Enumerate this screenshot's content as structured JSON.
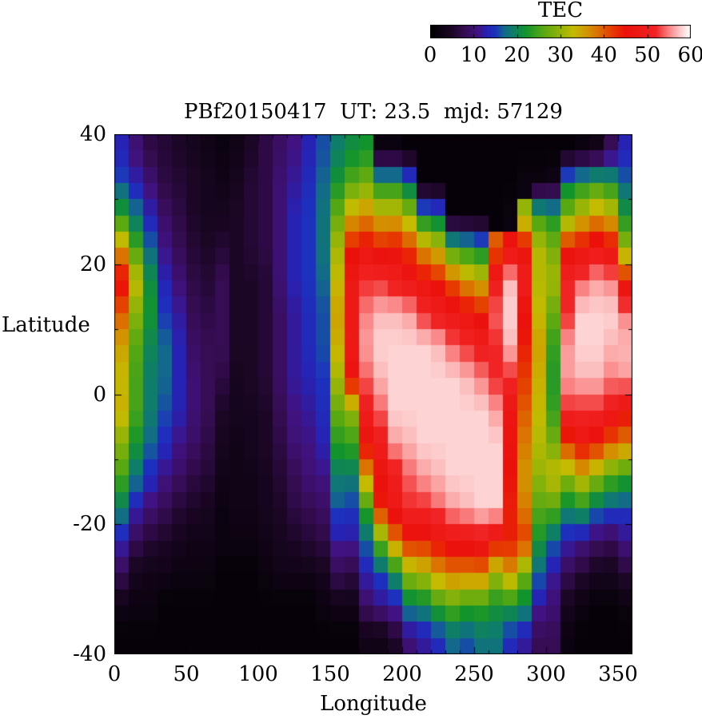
{
  "title": {
    "text": "PBf20150417  UT: 23.5  mjd: 57129"
  },
  "colorbar": {
    "label": "TEC",
    "min": 0,
    "max": 60,
    "tick_values": [
      0,
      10,
      20,
      30,
      40,
      50,
      60
    ],
    "tick_labels": [
      "0",
      "10",
      "20",
      "30",
      "40",
      "50",
      "60"
    ],
    "palette_stops": [
      [
        0,
        "#000000"
      ],
      [
        5,
        "#1c0626"
      ],
      [
        8,
        "#360c54"
      ],
      [
        11,
        "#401282"
      ],
      [
        13,
        "#2622b4"
      ],
      [
        15,
        "#1c32be"
      ],
      [
        17,
        "#12698c"
      ],
      [
        19,
        "#0e7d69"
      ],
      [
        22,
        "#12942d"
      ],
      [
        26,
        "#58a812"
      ],
      [
        30,
        "#94b408"
      ],
      [
        33,
        "#c4ba00"
      ],
      [
        36,
        "#d29600"
      ],
      [
        39,
        "#dc6c00"
      ],
      [
        42,
        "#e63a00"
      ],
      [
        45,
        "#eb100a"
      ],
      [
        52,
        "#f02424"
      ],
      [
        55,
        "#fa8282"
      ],
      [
        58,
        "#fdd3d3"
      ],
      [
        60,
        "#ffffff"
      ]
    ]
  },
  "axes": {
    "x": {
      "label": "Longitude",
      "min": 0,
      "max": 360,
      "tick_values": [
        0,
        50,
        100,
        150,
        200,
        250,
        300,
        350
      ],
      "tick_labels": [
        "0",
        "50",
        "100",
        "150",
        "200",
        "250",
        "300",
        "350"
      ],
      "minor_step": 10
    },
    "y": {
      "label": "Latitude",
      "min": -40,
      "max": 40,
      "tick_values": [
        40,
        20,
        0,
        -20,
        -40
      ],
      "tick_labels": [
        "40",
        "20",
        "0",
        "-20",
        "-40"
      ],
      "minor_step": 10
    }
  },
  "frame_color": "#000000",
  "chart_data": {
    "type": "heatmap",
    "title": "PBf20150417  UT: 23.5  mjd: 57129",
    "xlabel": "Longitude",
    "ylabel": "Latitude",
    "zlabel": "TEC",
    "xlim": [
      0,
      360
    ],
    "ylim": [
      -40,
      40
    ],
    "zlim": [
      0,
      60
    ],
    "grid": {
      "lon_cell_deg": 10,
      "lat_cell_deg": 5,
      "lon_centers_start": 5,
      "lat_centers": [
        37.5,
        32.5,
        27.5,
        22.5,
        17.5,
        12.5,
        7.5,
        2.5,
        -2.5,
        -7.5,
        -12.5,
        -17.5,
        -22.5,
        -27.5,
        -32.5,
        -37.5
      ]
    },
    "values": [
      [
        13,
        10,
        7,
        6,
        5,
        4,
        3,
        2,
        3,
        5,
        7,
        9,
        11,
        13,
        16,
        19,
        21,
        22,
        2,
        2,
        1,
        1,
        1,
        1,
        1,
        1,
        1,
        1,
        1,
        1,
        1,
        1,
        2,
        3,
        8,
        13
      ],
      [
        16,
        13,
        10,
        7,
        6,
        5,
        4,
        3,
        4,
        6,
        7,
        10,
        12,
        14,
        17,
        22,
        26,
        28,
        22,
        22,
        18,
        1,
        1,
        1,
        1,
        1,
        1,
        1,
        2,
        2,
        3,
        20,
        22,
        24,
        22,
        17
      ],
      [
        23,
        18,
        13,
        9,
        7,
        5,
        4,
        4,
        5,
        6,
        7,
        10,
        13,
        15,
        18,
        27,
        35,
        37,
        34,
        34,
        30,
        20,
        18,
        1,
        1,
        1,
        1,
        2,
        30,
        24,
        22,
        28,
        33,
        36,
        34,
        22
      ],
      [
        36,
        25,
        17,
        11,
        8,
        6,
        5,
        6,
        5,
        6,
        7,
        10,
        13,
        15,
        18,
        31,
        44,
        46,
        44,
        45,
        42,
        36,
        33,
        24,
        22,
        20,
        40,
        46,
        46,
        32,
        28,
        44,
        46,
        48,
        46,
        30
      ],
      [
        46,
        33,
        21,
        13,
        10,
        7,
        6,
        8,
        5,
        5,
        6,
        10,
        13,
        15,
        17,
        33,
        48,
        52,
        52,
        50,
        48,
        46,
        44,
        40,
        36,
        34,
        50,
        57,
        50,
        32,
        31,
        52,
        54,
        56,
        55,
        44
      ],
      [
        40,
        29,
        22,
        15,
        12,
        8,
        7,
        8,
        5,
        5,
        6,
        9,
        12,
        14,
        16,
        35,
        48,
        55,
        57,
        57,
        56,
        52,
        50,
        48,
        46,
        44,
        54,
        58,
        46,
        33,
        27,
        52,
        58,
        58,
        58,
        55
      ],
      [
        35,
        26,
        20,
        17,
        13,
        9,
        8,
        8,
        5,
        5,
        6,
        9,
        12,
        14,
        16,
        34,
        48,
        56,
        58,
        58,
        58,
        58,
        57,
        54,
        52,
        50,
        52,
        57,
        44,
        35,
        24,
        56,
        58,
        58,
        57,
        57
      ],
      [
        33,
        25,
        19,
        17,
        13,
        10,
        8,
        7,
        4,
        5,
        6,
        9,
        12,
        13,
        15,
        31,
        46,
        54,
        57,
        58,
        58,
        58,
        58,
        58,
        57,
        55,
        52,
        52,
        42,
        34,
        23,
        56,
        57,
        57,
        55,
        56
      ],
      [
        34,
        25,
        19,
        16,
        13,
        10,
        8,
        5,
        4,
        4,
        5,
        8,
        11,
        12,
        14,
        27,
        30,
        50,
        54,
        58,
        58,
        58,
        58,
        58,
        58,
        58,
        56,
        47,
        40,
        33,
        24,
        52,
        52,
        52,
        50,
        46
      ],
      [
        29,
        22,
        17,
        14,
        11,
        9,
        7,
        4,
        3,
        4,
        5,
        7,
        10,
        11,
        13,
        23,
        24,
        46,
        50,
        56,
        57,
        58,
        58,
        58,
        58,
        58,
        58,
        46,
        38,
        32,
        28,
        42,
        46,
        44,
        40,
        38
      ],
      [
        25,
        18,
        14,
        11,
        9,
        7,
        6,
        3,
        3,
        3,
        4,
        6,
        8,
        10,
        11,
        19,
        19,
        36,
        46,
        50,
        54,
        56,
        57,
        58,
        58,
        58,
        58,
        45,
        36,
        30,
        33,
        30,
        34,
        30,
        26,
        24
      ],
      [
        19,
        13,
        10,
        8,
        6,
        5,
        4,
        2,
        3,
        3,
        4,
        5,
        7,
        8,
        9,
        16,
        15,
        24,
        44,
        48,
        52,
        52,
        54,
        56,
        57,
        58,
        58,
        44,
        38,
        26,
        26,
        20,
        22,
        18,
        16,
        15
      ],
      [
        13,
        8,
        6,
        5,
        4,
        3,
        3,
        2,
        2,
        2,
        3,
        4,
        5,
        6,
        7,
        12,
        12,
        17,
        27,
        38,
        44,
        44,
        46,
        48,
        48,
        50,
        46,
        44,
        42,
        22,
        17,
        13,
        11,
        9,
        8,
        11
      ],
      [
        8,
        4,
        3,
        3,
        2,
        2,
        2,
        1,
        1,
        1,
        2,
        3,
        3,
        3,
        4,
        8,
        7,
        13,
        16,
        21,
        30,
        32,
        36,
        38,
        38,
        38,
        31,
        36,
        28,
        17,
        12,
        8,
        6,
        4,
        4,
        6
      ],
      [
        3,
        2,
        2,
        1,
        1,
        1,
        1,
        1,
        1,
        1,
        1,
        1,
        1,
        1,
        2,
        3,
        3,
        9,
        11,
        13,
        19,
        20,
        24,
        26,
        24,
        24,
        22,
        22,
        20,
        12,
        10,
        4,
        2,
        1,
        1,
        2
      ],
      [
        1,
        1,
        1,
        1,
        1,
        1,
        1,
        1,
        1,
        1,
        1,
        1,
        1,
        1,
        1,
        1,
        1,
        3,
        3,
        5,
        10,
        12,
        14,
        17,
        16,
        18,
        18,
        14,
        12,
        8,
        8,
        2,
        1,
        1,
        1,
        1
      ]
    ]
  }
}
